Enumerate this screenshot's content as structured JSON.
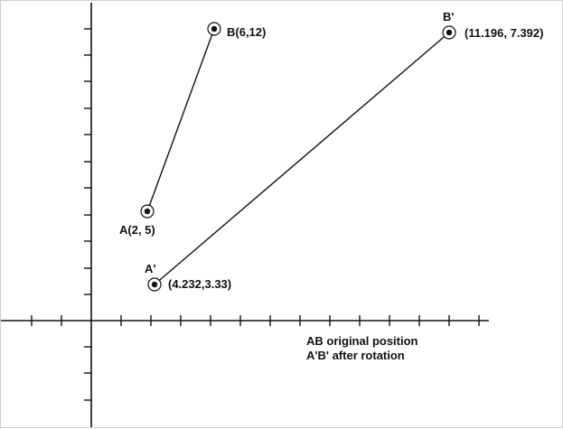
{
  "points": {
    "A": {
      "label": "A(2, 5)"
    },
    "B": {
      "label": "B(6,12)"
    },
    "A_prime": {
      "name": "A'",
      "coords": "(4.232,3.33)"
    },
    "B_prime": {
      "name": "B'",
      "coords": "(11.196, 7.392)"
    }
  },
  "legend": {
    "line1": "AB original position",
    "line2": "A'B' after rotation"
  },
  "colors": {
    "ink": "#111111",
    "background": "#ffffff"
  }
}
